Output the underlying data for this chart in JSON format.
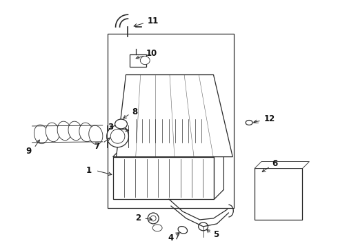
{
  "background_color": "#ffffff",
  "line_color": "#2a2a2a",
  "label_color": "#111111",
  "fig_width": 4.9,
  "fig_height": 3.6,
  "dpi": 100
}
